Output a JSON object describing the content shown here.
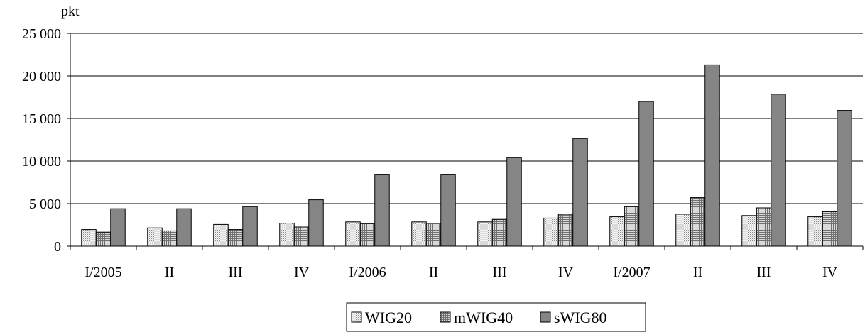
{
  "chart_data": {
    "type": "bar",
    "ylabel": "pkt",
    "ylim": [
      0,
      25000
    ],
    "yticks": [
      0,
      5000,
      10000,
      15000,
      20000,
      25000
    ],
    "ytick_labels": [
      "0",
      "5 000",
      "10 000",
      "15 000",
      "20 000",
      "25 000"
    ],
    "grid": true,
    "legend_position": "bottom",
    "categories": [
      "I/2005",
      "II",
      "III",
      "IV",
      "I/2006",
      "II",
      "III",
      "IV",
      "I/2007",
      "II",
      "III",
      "IV"
    ],
    "series": [
      {
        "name": "WIG20",
        "pattern": "dots",
        "color": "#e6e6e6",
        "values": [
          1950,
          2150,
          2550,
          2700,
          2850,
          2850,
          2850,
          3300,
          3450,
          3750,
          3600,
          3450
        ]
      },
      {
        "name": "mWIG40",
        "pattern": "crosshatch",
        "color": "#bdbdbd",
        "values": [
          1650,
          1800,
          1950,
          2250,
          2650,
          2700,
          3150,
          3750,
          4650,
          5700,
          4500,
          4050
        ]
      },
      {
        "name": "sWIG80",
        "pattern": "solid-dark",
        "color": "#858585",
        "values": [
          4400,
          4400,
          4650,
          5450,
          8450,
          8450,
          10400,
          12650,
          17000,
          21300,
          17850,
          15950
        ]
      }
    ]
  }
}
